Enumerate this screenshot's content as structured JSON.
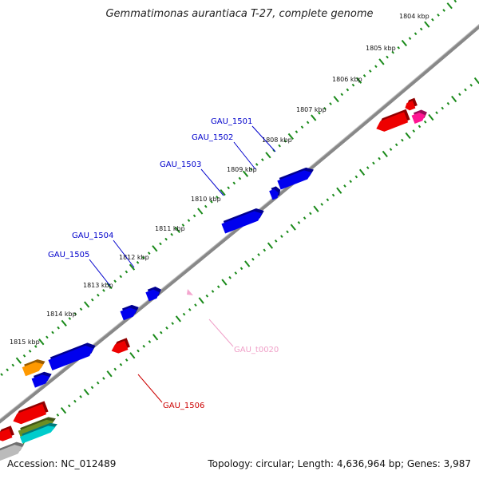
{
  "title": "Gemmatimonas aurantiaca T-27, complete genome",
  "footer": {
    "accession": "Accession: NC_012489",
    "summary": "Topology: circular; Length: 4,636,964 bp; Genes: 3,987"
  },
  "ticks": [
    "1804 kbp",
    "1805 kbp",
    "1806 kbp",
    "1807 kbp",
    "1808 kbp",
    "1809 kbp",
    "1810 kbp",
    "1811 kbp",
    "1812 kbp",
    "1813 kbp",
    "1814 kbp",
    "1815 kbp"
  ],
  "gene_labels": [
    {
      "text": "GAU_1501",
      "color": "#0000cc"
    },
    {
      "text": "GAU_1502",
      "color": "#0000cc"
    },
    {
      "text": "GAU_1503",
      "color": "#0000cc"
    },
    {
      "text": "GAU_1504",
      "color": "#0000cc"
    },
    {
      "text": "GAU_1505",
      "color": "#0000cc"
    },
    {
      "text": "GAU_t0020",
      "color": "#f0a0c8"
    },
    {
      "text": "GAU_1506",
      "color": "#cc0000"
    }
  ],
  "colors": {
    "backbone": "#888888",
    "tick": "#1a8a1a",
    "gene_blue": "#0000ee",
    "gene_red": "#ee0000",
    "gene_orange": "#ff9900",
    "gene_magenta": "#ff1493",
    "gene_cyan": "#00cccc",
    "gene_olive": "#6b8e23"
  }
}
